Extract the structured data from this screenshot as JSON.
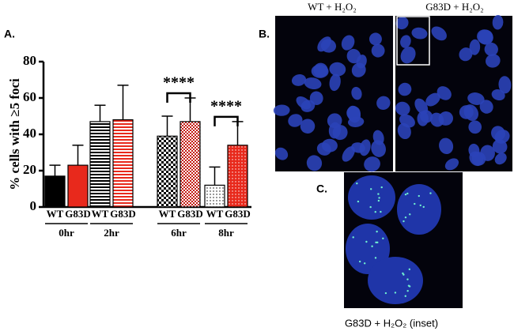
{
  "chart_data": {
    "type": "bar",
    "y_label": "% cells with ≥5 foci",
    "categories": [
      "0hr",
      "2hr",
      "6hr",
      "8hr"
    ],
    "series": [
      {
        "name": "WT",
        "color": "#000000",
        "values": [
          17,
          47,
          39,
          12
        ],
        "errors": [
          6,
          9,
          11,
          10
        ]
      },
      {
        "name": "G83D",
        "color": "#e8291c",
        "values": [
          23,
          48,
          47,
          34
        ],
        "errors": [
          11,
          19,
          13,
          13
        ]
      }
    ],
    "patterns": [
      "solid",
      "hlines",
      "checker",
      "dots"
    ],
    "significance": [
      null,
      null,
      "****",
      "****"
    ],
    "ylim": [
      0,
      80
    ],
    "yticks": [
      0,
      20,
      40,
      60,
      80
    ]
  },
  "figure": {
    "panel_a": "A.",
    "panel_b": "B.",
    "panel_c": "C.",
    "image_left_label": "WT + H₂O₂",
    "image_right_label": "G83D + H₂O₂",
    "inset_label": "G83D + H₂O₂  (inset)"
  }
}
